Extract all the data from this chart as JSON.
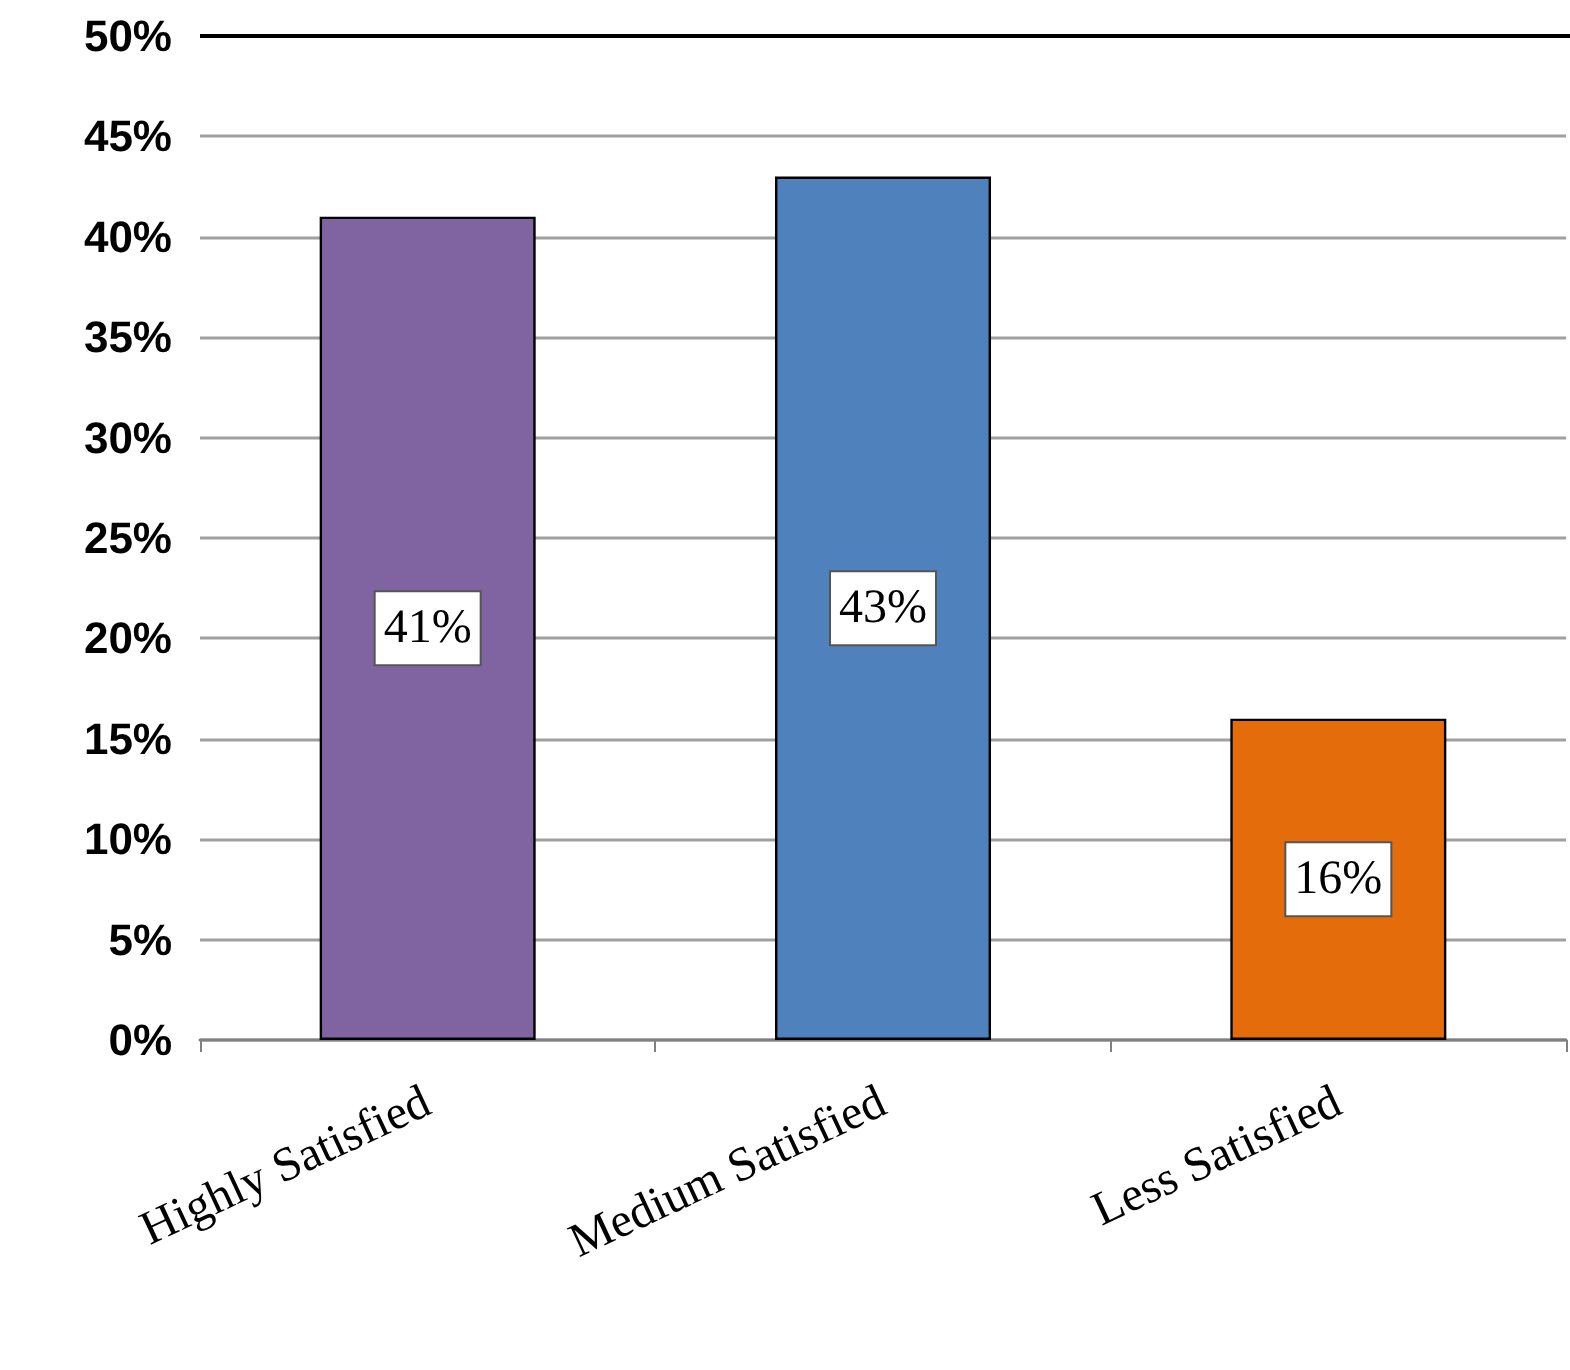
{
  "chart_data": {
    "type": "bar",
    "categories": [
      "Highly Satisfied",
      "Medium Satisfied",
      "Less Satisfied"
    ],
    "values": [
      41,
      43,
      16
    ],
    "colors": [
      "#8064a2",
      "#4f81bd",
      "#e46c0a"
    ],
    "ylim": [
      0,
      50
    ],
    "yticks": [
      {
        "value": 0,
        "label": "0%"
      },
      {
        "value": 5,
        "label": "5%"
      },
      {
        "value": 10,
        "label": "10%"
      },
      {
        "value": 15,
        "label": "15%"
      },
      {
        "value": 20,
        "label": "20%"
      },
      {
        "value": 25,
        "label": "25%"
      },
      {
        "value": 30,
        "label": "30%"
      },
      {
        "value": 35,
        "label": "35%"
      },
      {
        "value": 40,
        "label": "40%"
      },
      {
        "value": 45,
        "label": "45%"
      },
      {
        "value": 50,
        "label": "50%"
      }
    ],
    "value_labels": [
      "41%",
      "43%",
      "16%"
    ],
    "grid": "y"
  }
}
